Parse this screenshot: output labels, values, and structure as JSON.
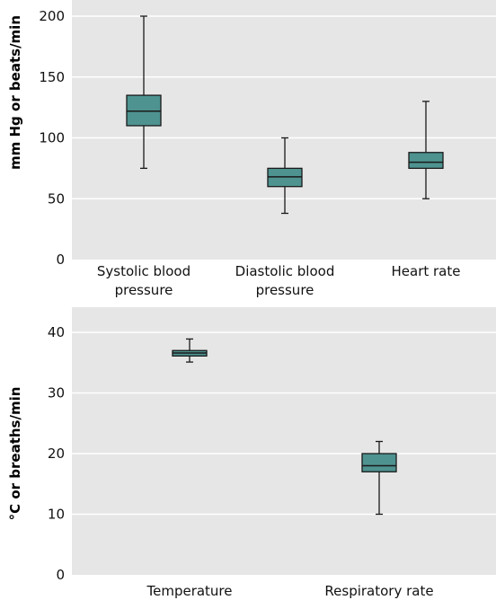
{
  "chart_data": [
    {
      "type": "box",
      "title": "",
      "xlabel": "",
      "ylabel": "mm Hg or beats/min",
      "ylim": [
        0,
        200
      ],
      "yticks": [
        "0",
        "50",
        "100",
        "150",
        "200"
      ],
      "grid": true,
      "categories": [
        [
          "Systolic blood",
          "pressure"
        ],
        [
          "Diastolic blood",
          "pressure"
        ],
        [
          "Heart rate"
        ]
      ],
      "boxes": [
        {
          "min": 75,
          "q1": 110,
          "median": 122,
          "q3": 135,
          "max": 200
        },
        {
          "min": 38,
          "q1": 60,
          "median": 68,
          "q3": 75,
          "max": 100
        },
        {
          "min": 50,
          "q1": 75,
          "median": 80,
          "q3": 88,
          "max": 130
        }
      ]
    },
    {
      "type": "box",
      "title": "",
      "xlabel": "",
      "ylabel": "°C or breaths/min",
      "ylim": [
        0,
        40
      ],
      "yticks": [
        "0",
        "10",
        "20",
        "30",
        "40"
      ],
      "grid": true,
      "categories": [
        [
          "Temperature"
        ],
        [
          "Respiratory rate"
        ]
      ],
      "boxes": [
        {
          "min": 35.1,
          "q1": 36.1,
          "median": 36.6,
          "q3": 37.0,
          "max": 38.9
        },
        {
          "min": 10,
          "q1": 17,
          "median": 18,
          "q3": 20,
          "max": 22
        }
      ]
    }
  ],
  "colors": {
    "panel_background": "#e6e6e6",
    "gridline": "#ffffff",
    "box_fill": "#4e9390",
    "box_stroke": "#1a1a1a",
    "whisker": "#1a1a1a",
    "text": "#111111"
  }
}
